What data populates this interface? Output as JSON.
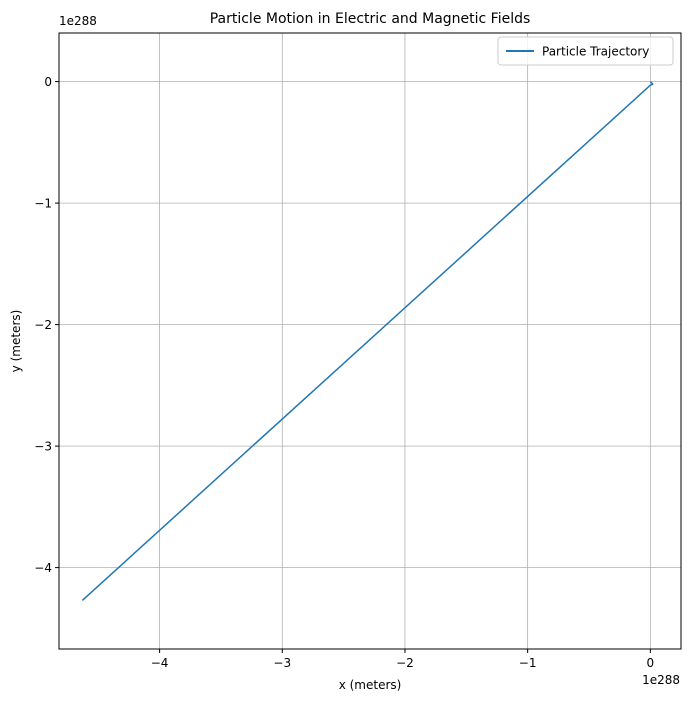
{
  "chart_data": {
    "type": "line",
    "title": "Particle Motion in Electric and Magnetic Fields",
    "xlabel": "x (meters)",
    "ylabel": "y (meters)",
    "x_offset_label": "1e288",
    "y_offset_label": "1e288",
    "xlim": [
      -4.82,
      0.25
    ],
    "ylim": [
      -4.67,
      0.4
    ],
    "x_ticks": [
      -4,
      -3,
      -2,
      -1,
      0
    ],
    "x_tick_labels": [
      "−4",
      "−3",
      "−2",
      "−1",
      "0"
    ],
    "y_ticks": [
      0,
      -1,
      -2,
      -3,
      -4
    ],
    "y_tick_labels": [
      "0",
      "−1",
      "−2",
      "−3",
      "−4"
    ],
    "grid": true,
    "legend_position": "top-right",
    "series": [
      {
        "name": "Particle Trajectory",
        "color": "#1f77b4",
        "x": [
          -4.63,
          0.0,
          0.02,
          0.0
        ],
        "y": [
          -4.27,
          -0.03,
          -0.02,
          0.0
        ]
      }
    ]
  }
}
